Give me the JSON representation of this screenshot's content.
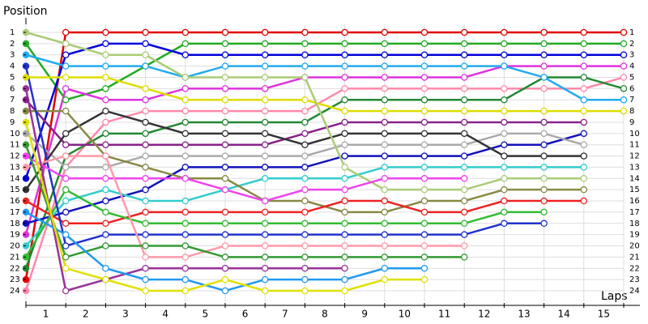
{
  "chart_data": {
    "type": "lap-chart",
    "y_title": "Position",
    "x_title": "Laps",
    "x": [
      0,
      1,
      2,
      3,
      4,
      5,
      6,
      7,
      8,
      9,
      10,
      11,
      12,
      13,
      14,
      15
    ],
    "xlim": [
      0,
      15
    ],
    "xticks": [
      1,
      2,
      3,
      4,
      5,
      6,
      7,
      8,
      9,
      10,
      11,
      12,
      13,
      14,
      15
    ],
    "ylim": [
      1,
      24
    ],
    "y_inverted": true,
    "yticks": [
      1,
      2,
      3,
      4,
      5,
      6,
      7,
      8,
      9,
      10,
      11,
      12,
      13,
      14,
      15,
      16,
      17,
      18,
      19,
      20,
      21,
      22,
      23,
      24
    ],
    "grid": true,
    "series": [
      {
        "color": "#e00000",
        "values": [
          23,
          1,
          1,
          1,
          1,
          1,
          1,
          1,
          1,
          1,
          1,
          1,
          1,
          1,
          1,
          1
        ]
      },
      {
        "color": "#22aa22",
        "values": [
          2,
          7,
          6,
          4,
          2,
          2,
          2,
          2,
          2,
          2,
          2,
          2,
          2,
          2,
          2,
          2
        ]
      },
      {
        "color": "#0000dd",
        "values": [
          14,
          3,
          2,
          2,
          3,
          3,
          3,
          3,
          3,
          3,
          3,
          3,
          3,
          3,
          3,
          3
        ]
      },
      {
        "color": "#dd33dd",
        "values": [
          19,
          6,
          7,
          7,
          6,
          6,
          6,
          5,
          5,
          5,
          5,
          5,
          4,
          4,
          4,
          4
        ]
      },
      {
        "color": "#ff88aa",
        "values": [
          24,
          13,
          9,
          8,
          8,
          8,
          8,
          8,
          6,
          6,
          6,
          6,
          6,
          6,
          6,
          5
        ]
      },
      {
        "color": "#228833",
        "values": [
          22,
          12,
          10,
          10,
          9,
          9,
          9,
          9,
          7,
          7,
          7,
          7,
          7,
          5,
          5,
          6
        ]
      },
      {
        "color": "#22aaee",
        "values": [
          3,
          4,
          4,
          4,
          5,
          4,
          4,
          4,
          4,
          4,
          4,
          4,
          4,
          5,
          7,
          7
        ]
      },
      {
        "color": "#dddd00",
        "values": [
          5,
          5,
          5,
          6,
          7,
          7,
          7,
          7,
          8,
          8,
          8,
          8,
          8,
          8,
          8,
          8
        ]
      },
      {
        "color": "#882288",
        "values": [
          7,
          11,
          11,
          11,
          11,
          11,
          11,
          10,
          9,
          9,
          9,
          9,
          9,
          9,
          9,
          null
        ]
      },
      {
        "color": "#1111bb",
        "values": [
          18,
          17,
          16,
          15,
          13,
          13,
          13,
          13,
          12,
          12,
          12,
          12,
          11,
          11,
          10,
          null
        ]
      },
      {
        "color": "#aaaaaa",
        "values": [
          10,
          13,
          13,
          12,
          12,
          12,
          12,
          12,
          11,
          11,
          11,
          11,
          10,
          10,
          11,
          null
        ]
      },
      {
        "color": "#333333",
        "values": [
          15,
          10,
          8,
          9,
          10,
          10,
          10,
          11,
          10,
          10,
          10,
          10,
          12,
          12,
          12,
          null
        ]
      },
      {
        "color": "#33cccc",
        "values": [
          20,
          16,
          15,
          16,
          16,
          15,
          14,
          14,
          14,
          13,
          13,
          13,
          13,
          13,
          13,
          null
        ]
      },
      {
        "color": "#aacc77",
        "values": [
          1,
          2,
          3,
          3,
          5,
          5,
          5,
          5,
          13,
          15,
          15,
          15,
          14,
          14,
          14,
          null
        ]
      },
      {
        "color": "#888844",
        "values": [
          8,
          8,
          12,
          13,
          14,
          14,
          16,
          16,
          17,
          17,
          16,
          16,
          15,
          15,
          15,
          null
        ]
      },
      {
        "color": "#ee2222",
        "values": [
          16,
          18,
          18,
          17,
          17,
          17,
          17,
          17,
          16,
          16,
          17,
          17,
          16,
          16,
          16,
          null
        ]
      },
      {
        "color": "#33bb33",
        "values": [
          21,
          15,
          17,
          18,
          18,
          18,
          18,
          18,
          18,
          18,
          18,
          18,
          17,
          17,
          null,
          null
        ]
      },
      {
        "color": "#2233cc",
        "values": [
          4,
          20,
          19,
          19,
          19,
          19,
          19,
          19,
          19,
          19,
          19,
          19,
          18,
          18,
          null,
          null
        ]
      },
      {
        "color": "#ee44ee",
        "values": [
          12,
          14,
          14,
          14,
          14,
          15,
          16,
          15,
          15,
          14,
          14,
          14,
          null,
          null,
          null,
          null
        ]
      },
      {
        "color": "#ff99aa",
        "values": [
          13,
          12,
          12,
          21,
          21,
          20,
          20,
          20,
          20,
          20,
          20,
          20,
          null,
          null,
          null,
          null
        ]
      },
      {
        "color": "#339933",
        "values": [
          11,
          21,
          20,
          20,
          20,
          21,
          21,
          21,
          21,
          21,
          21,
          21,
          null,
          null,
          null,
          null
        ]
      },
      {
        "color": "#993399",
        "values": [
          6,
          24,
          23,
          22,
          22,
          22,
          22,
          22,
          22,
          null,
          null,
          null,
          null,
          null,
          null,
          null
        ]
      },
      {
        "color": "#2299ee",
        "values": [
          17,
          19,
          22,
          23,
          23,
          24,
          23,
          23,
          23,
          22,
          22,
          null,
          null,
          null,
          null,
          null
        ]
      },
      {
        "color": "#e0e000",
        "values": [
          9,
          22,
          23,
          24,
          24,
          23,
          24,
          24,
          24,
          23,
          23,
          null,
          null,
          null,
          null,
          null
        ]
      }
    ]
  }
}
